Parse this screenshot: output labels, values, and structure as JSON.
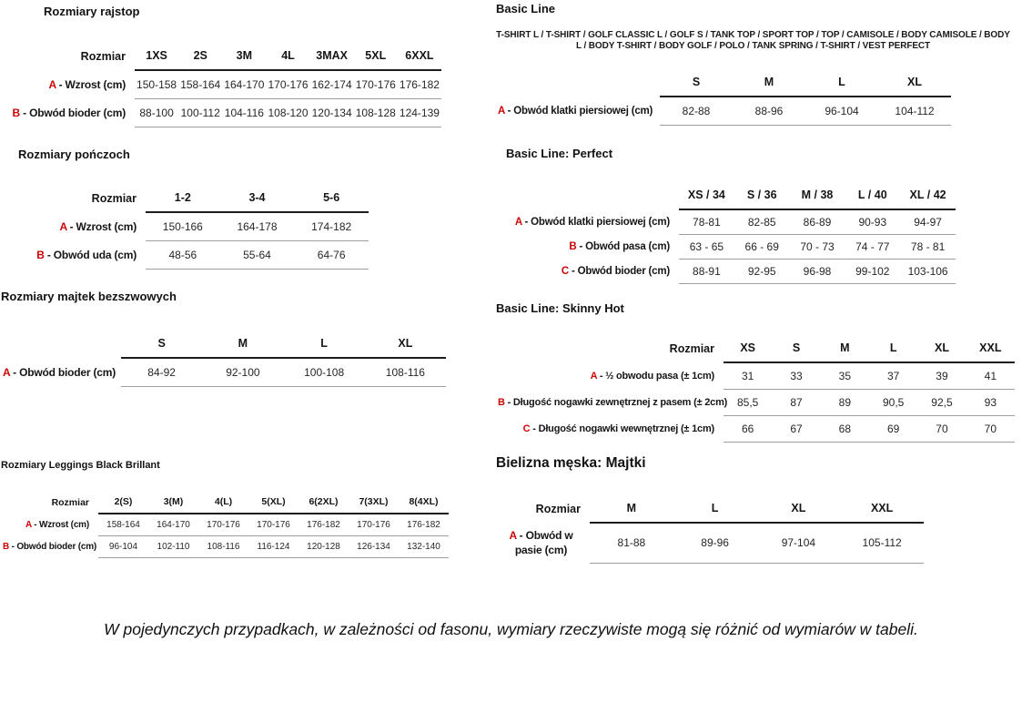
{
  "page": {
    "accent_color": "#cc0404",
    "note": "W pojedynczych przypadkach, w zależności od fasonu, wymiary rzeczywiste mogą się różnić od wymiarów w tabeli."
  },
  "sections": {
    "rajstop": {
      "title": "Rozmiary rajstop",
      "corner": "Rozmiar",
      "columns": [
        "1XS",
        "2S",
        "3M",
        "4L",
        "3MAX",
        "5XL",
        "6XXL"
      ],
      "rows": [
        {
          "letter": "A",
          "label": "Wzrost (cm)",
          "values": [
            "150-158",
            "158-164",
            "164-170",
            "170-176",
            "162-174",
            "170-176",
            "176-182"
          ]
        },
        {
          "letter": "B",
          "label": "Obwód bioder (cm)",
          "values": [
            "88-100",
            "100-112",
            "104-116",
            "108-120",
            "120-134",
            "108-128",
            "124-139"
          ]
        }
      ]
    },
    "ponczochy": {
      "title": "Rozmiary pończoch",
      "corner": "Rozmiar",
      "columns": [
        "1-2",
        "3-4",
        "5-6"
      ],
      "rows": [
        {
          "letter": "A",
          "label": "Wzrost (cm)",
          "values": [
            "150-166",
            "164-178",
            "174-182"
          ]
        },
        {
          "letter": "B",
          "label": "Obwód uda (cm)",
          "values": [
            "48-56",
            "55-64",
            "64-76"
          ]
        }
      ]
    },
    "majtki_bezszwowe": {
      "title": "Rozmiary majtek bezszwowych",
      "corner": "",
      "columns": [
        "S",
        "M",
        "L",
        "XL"
      ],
      "rows": [
        {
          "letter": "A",
          "label": "Obwód bioder (cm)",
          "values": [
            "84-92",
            "92-100",
            "100-108",
            "108-116"
          ]
        }
      ]
    },
    "leggings": {
      "title": "Rozmiary Leggings Black Brillant",
      "corner": "Rozmiar",
      "columns": [
        "2(S)",
        "3(M)",
        "4(L)",
        "5(XL)",
        "6(2XL)",
        "7(3XL)",
        "8(4XL)"
      ],
      "rows": [
        {
          "letter": "A",
          "label": "Wzrost (cm)",
          "values": [
            "158-164",
            "164-170",
            "170-176",
            "170-176",
            "176-182",
            "170-176",
            "176-182"
          ]
        },
        {
          "letter": "B",
          "label": "Obwód bioder (cm)",
          "values": [
            "96-104",
            "102-110",
            "108-116",
            "116-124",
            "120-128",
            "126-134",
            "132-140"
          ]
        }
      ]
    },
    "basic_line": {
      "title": "Basic Line",
      "subtitle": "T-SHIRT L / T-SHIRT / GOLF CLASSIC L / GOLF S / TANK TOP / SPORT TOP / TOP / CAMISOLE / BODY CAMISOLE / BODY L / BODY T-SHIRT / BODY GOLF / POLO / TANK SPRING / T-SHIRT / VEST PERFECT",
      "corner": "",
      "columns": [
        "S",
        "M",
        "L",
        "XL"
      ],
      "rows": [
        {
          "letter": "A",
          "label": "Obwód klatki piersiowej (cm)",
          "values": [
            "82-88",
            "88-96",
            "96-104",
            "104-112"
          ]
        }
      ]
    },
    "basic_line_perfect": {
      "title": "Basic Line: Perfect",
      "corner": "",
      "columns": [
        "XS / 34",
        "S / 36",
        "M / 38",
        "L / 40",
        "XL / 42"
      ],
      "rows": [
        {
          "letter": "A",
          "label": "Obwód klatki piersiowej (cm)",
          "values": [
            "78-81",
            "82-85",
            "86-89",
            "90-93",
            "94-97"
          ]
        },
        {
          "letter": "B",
          "label": "Obwód pasa (cm)",
          "values": [
            "63 - 65",
            "66 - 69",
            "70 - 73",
            "74 - 77",
            "78 - 81"
          ]
        },
        {
          "letter": "C",
          "label": "Obwód bioder (cm)",
          "values": [
            "88-91",
            "92-95",
            "96-98",
            "99-102",
            "103-106"
          ]
        }
      ]
    },
    "skinny_hot": {
      "title": "Basic Line: Skinny Hot",
      "corner": "Rozmiar",
      "columns": [
        "XS",
        "S",
        "M",
        "L",
        "XL",
        "XXL"
      ],
      "rows": [
        {
          "letter": "A",
          "label": "½ obwodu pasa (± 1cm)",
          "values": [
            "31",
            "33",
            "35",
            "37",
            "39",
            "41"
          ]
        },
        {
          "letter": "B",
          "label": "Długość nogawki zewnętrznej z pasem (± 2cm)",
          "values": [
            "85,5",
            "87",
            "89",
            "90,5",
            "92,5",
            "93"
          ]
        },
        {
          "letter": "C",
          "label": "Długość nogawki wewnętrznej (± 1cm)",
          "values": [
            "66",
            "67",
            "68",
            "69",
            "70",
            "70"
          ]
        }
      ]
    },
    "bielizna_meska": {
      "title": "Bielizna męska: Majtki",
      "corner": "Rozmiar",
      "columns": [
        "M",
        "L",
        "XL",
        "XXL"
      ],
      "rows": [
        {
          "letter": "A",
          "label": "Obwód w pasie (cm)",
          "values": [
            "81-88",
            "89-96",
            "97-104",
            "105-112"
          ]
        }
      ]
    }
  }
}
